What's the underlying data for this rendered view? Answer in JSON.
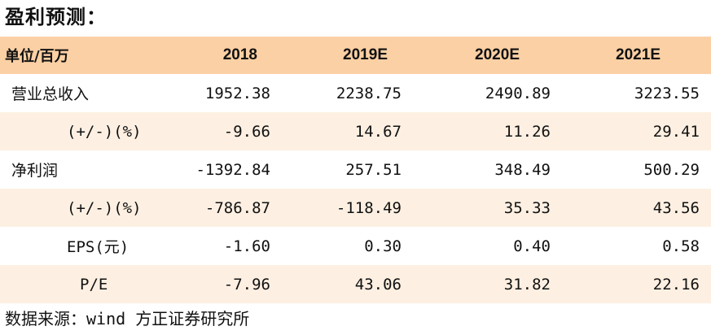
{
  "title": "盈利预测：",
  "header": {
    "unit_label": "单位/百万",
    "years": [
      "2018",
      "2019E",
      "2020E",
      "2021E"
    ]
  },
  "rows": [
    {
      "label": "营业总收入",
      "values": [
        "1952.38",
        "2238.75",
        "2490.89",
        "3223.55"
      ]
    },
    {
      "label": "(+/-)(%)",
      "values": [
        "-9.66",
        "14.67",
        "11.26",
        "29.41"
      ]
    },
    {
      "label": "净利润",
      "values": [
        "-1392.84",
        "257.51",
        "348.49",
        "500.29"
      ]
    },
    {
      "label": "(+/-)(%)",
      "values": [
        "-786.87",
        "-118.49",
        "35.33",
        "43.56"
      ]
    },
    {
      "label": "EPS(元)",
      "values": [
        "-1.60",
        "0.30",
        "0.40",
        "0.58"
      ]
    },
    {
      "label": "P/E",
      "values": [
        "-7.96",
        "43.06",
        "31.82",
        "22.16"
      ]
    }
  ],
  "source": "数据来源：wind 方正证券研究所",
  "colors": {
    "header_bg": "#fbd0a4",
    "stripe_bg": "#fdf0e2",
    "text": "#111111"
  }
}
